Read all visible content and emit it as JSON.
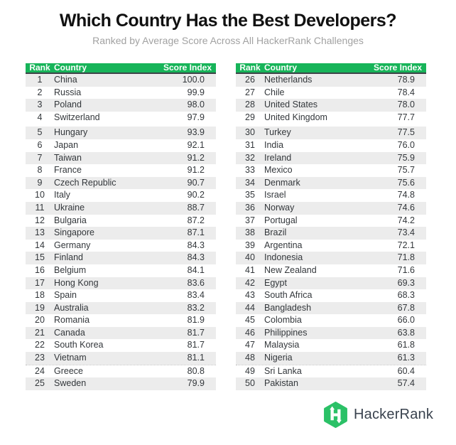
{
  "chart_data": {
    "type": "table",
    "title": "Which Country Has the Best Developers?",
    "subtitle": "Ranked by Average Score Across All HackerRank Challenges",
    "columns": [
      "Rank",
      "Country",
      "Score Index"
    ],
    "layout": "two side-by-side tables, ranks 1-25 left, 26-50 right, alternating gray row stripes",
    "rows": [
      [
        1,
        "China",
        100.0
      ],
      [
        2,
        "Russia",
        99.9
      ],
      [
        3,
        "Poland",
        98.0
      ],
      [
        4,
        "Switzerland",
        97.9
      ],
      [
        5,
        "Hungary",
        93.9
      ],
      [
        6,
        "Japan",
        92.1
      ],
      [
        7,
        "Taiwan",
        91.2
      ],
      [
        8,
        "France",
        91.2
      ],
      [
        9,
        "Czech Republic",
        90.7
      ],
      [
        10,
        "Italy",
        90.2
      ],
      [
        11,
        "Ukraine",
        88.7
      ],
      [
        12,
        "Bulgaria",
        87.2
      ],
      [
        13,
        "Singapore",
        87.1
      ],
      [
        14,
        "Germany",
        84.3
      ],
      [
        15,
        "Finland",
        84.3
      ],
      [
        16,
        "Belgium",
        84.1
      ],
      [
        17,
        "Hong Kong",
        83.6
      ],
      [
        18,
        "Spain",
        83.4
      ],
      [
        19,
        "Australia",
        83.2
      ],
      [
        20,
        "Romania",
        81.9
      ],
      [
        21,
        "Canada",
        81.7
      ],
      [
        22,
        "South Korea",
        81.7
      ],
      [
        23,
        "Vietnam",
        81.1
      ],
      [
        24,
        "Greece",
        80.8
      ],
      [
        25,
        "Sweden",
        79.9
      ],
      [
        26,
        "Netherlands",
        78.9
      ],
      [
        27,
        "Chile",
        78.4
      ],
      [
        28,
        "United States",
        78.0
      ],
      [
        29,
        "United Kingdom",
        77.7
      ],
      [
        30,
        "Turkey",
        77.5
      ],
      [
        31,
        "India",
        76.0
      ],
      [
        32,
        "Ireland",
        75.9
      ],
      [
        33,
        "Mexico",
        75.7
      ],
      [
        34,
        "Denmark",
        75.6
      ],
      [
        35,
        "Israel",
        74.8
      ],
      [
        36,
        "Norway",
        74.6
      ],
      [
        37,
        "Portugal",
        74.2
      ],
      [
        38,
        "Brazil",
        73.4
      ],
      [
        39,
        "Argentina",
        72.1
      ],
      [
        40,
        "Indonesia",
        71.8
      ],
      [
        41,
        "New Zealand",
        71.6
      ],
      [
        42,
        "Egypt",
        69.3
      ],
      [
        43,
        "South Africa",
        68.3
      ],
      [
        44,
        "Bangladesh",
        67.8
      ],
      [
        45,
        "Colombia",
        66.0
      ],
      [
        46,
        "Philippines",
        63.8
      ],
      [
        47,
        "Malaysia",
        61.8
      ],
      [
        48,
        "Nigeria",
        61.3
      ],
      [
        49,
        "Sri Lanka",
        60.4
      ],
      [
        50,
        "Pakistan",
        57.4
      ]
    ]
  },
  "footer": {
    "brand": "HackerRank",
    "logo_icon": "hackerrank-hexagon-icon"
  },
  "colors": {
    "green": "#17b459",
    "logo_green": "#2bc167",
    "stripe": "#ececec",
    "header_text": "#ffffff",
    "header_line": "#3d4348",
    "row_text": "#33373b",
    "title": "#111111",
    "subtitle": "#a2a2a2",
    "brand_text": "#39424e"
  }
}
